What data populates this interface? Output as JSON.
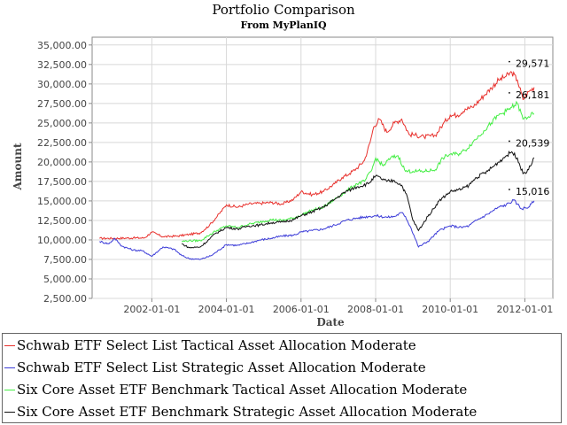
{
  "chart_data": {
    "type": "line",
    "title": "Portfolio Comparison",
    "subtitle": "From MyPlanIQ",
    "xlabel": "Date",
    "ylabel": "Amount",
    "ylim": [
      2500,
      36000
    ],
    "xlim": [
      2000.4,
      2012.75
    ],
    "y_ticks": [
      "2,500.00",
      "5,000.00",
      "7,500.00",
      "10,000.00",
      "12,500.00",
      "15,000.00",
      "17,500.00",
      "20,000.00",
      "22,500.00",
      "25,000.00",
      "27,500.00",
      "30,000.00",
      "32,500.00",
      "35,000.00"
    ],
    "y_tick_values": [
      2500,
      5000,
      7500,
      10000,
      12500,
      15000,
      17500,
      20000,
      22500,
      25000,
      27500,
      30000,
      32500,
      35000
    ],
    "x_ticks": [
      "2002-01-01",
      "2004-01-01",
      "2006-01-01",
      "2008-01-01",
      "2010-01-01",
      "2012-01-01"
    ],
    "x_tick_values": [
      2002,
      2004,
      2006,
      2008,
      2010,
      2012
    ],
    "grid": true,
    "legend_position": "bottom",
    "series": [
      {
        "name": "Schwab ETF Select List Tactical Asset Allocation Moderate",
        "color": "#e8302c",
        "end_label": "29,571",
        "x": [
          2000.6,
          2001.0,
          2001.5,
          2001.8,
          2002.0,
          2002.3,
          2002.7,
          2003.0,
          2003.3,
          2003.55,
          2003.75,
          2004.0,
          2004.3,
          2004.6,
          2004.9,
          2005.2,
          2005.5,
          2005.8,
          2006.0,
          2006.3,
          2006.6,
          2006.9,
          2007.1,
          2007.3,
          2007.5,
          2007.7,
          2007.85,
          2007.95,
          2008.1,
          2008.3,
          2008.5,
          2008.7,
          2008.9,
          2009.0,
          2009.3,
          2009.6,
          2009.8,
          2010.0,
          2010.2,
          2010.4,
          2010.6,
          2010.9,
          2011.1,
          2011.3,
          2011.5,
          2011.65,
          2011.8,
          2011.95,
          2012.1,
          2012.25
        ],
        "y": [
          10200,
          10200,
          10250,
          10250,
          11000,
          10400,
          10500,
          10700,
          10900,
          11900,
          13000,
          14500,
          14200,
          14600,
          14700,
          14800,
          14600,
          15200,
          16200,
          15800,
          16200,
          17200,
          18000,
          18500,
          19200,
          20200,
          22500,
          24500,
          25500,
          23800,
          25000,
          25500,
          23500,
          23500,
          23200,
          23400,
          24800,
          26000,
          26000,
          26800,
          27000,
          28500,
          29500,
          30500,
          31000,
          31500,
          30500,
          28000,
          29000,
          29571
        ]
      },
      {
        "name": "Schwab ETF Select List Strategic Asset Allocation Moderate",
        "color": "#3c3cd8",
        "end_label": "15,016",
        "x": [
          2000.6,
          2000.85,
          2001.0,
          2001.2,
          2001.5,
          2001.75,
          2002.0,
          2002.3,
          2002.6,
          2002.8,
          2003.0,
          2003.3,
          2003.6,
          2004.0,
          2004.3,
          2004.6,
          2004.9,
          2005.2,
          2005.5,
          2005.8,
          2006.0,
          2006.3,
          2006.6,
          2006.9,
          2007.2,
          2007.5,
          2007.8,
          2008.0,
          2008.3,
          2008.5,
          2008.7,
          2008.8,
          2008.95,
          2009.15,
          2009.4,
          2009.7,
          2010.0,
          2010.3,
          2010.5,
          2010.7,
          2011.0,
          2011.3,
          2011.5,
          2011.7,
          2011.8,
          2011.9,
          2012.1,
          2012.25
        ],
        "y": [
          9800,
          9500,
          10200,
          9200,
          8700,
          8600,
          7900,
          9100,
          8800,
          8000,
          7600,
          7500,
          8000,
          9400,
          9300,
          9600,
          10000,
          10200,
          10500,
          10600,
          11000,
          11200,
          11400,
          11900,
          12500,
          12800,
          13000,
          13100,
          12900,
          13000,
          13500,
          13000,
          11500,
          9100,
          9800,
          11200,
          11800,
          11600,
          11800,
          12500,
          13300,
          14200,
          14500,
          15100,
          14600,
          14000,
          14200,
          15016
        ]
      },
      {
        "name": "Six Core Asset ETF Benchmark Tactical Asset Allocation Moderate",
        "color": "#44ee44",
        "end_label": "26,181",
        "x": [
          2002.8,
          2003.0,
          2003.3,
          2003.5,
          2003.7,
          2004.0,
          2004.3,
          2004.6,
          2004.9,
          2005.2,
          2005.5,
          2005.8,
          2006.0,
          2006.3,
          2006.6,
          2006.9,
          2007.2,
          2007.5,
          2007.7,
          2007.9,
          2008.0,
          2008.2,
          2008.4,
          2008.6,
          2008.8,
          2009.0,
          2009.3,
          2009.6,
          2009.8,
          2010.0,
          2010.2,
          2010.4,
          2010.6,
          2010.9,
          2011.1,
          2011.3,
          2011.5,
          2011.65,
          2011.8,
          2011.95,
          2012.1,
          2012.25
        ],
        "y": [
          9800,
          9900,
          9900,
          10500,
          11100,
          11800,
          11600,
          12000,
          12300,
          12600,
          12500,
          12800,
          13200,
          13800,
          14200,
          15200,
          16200,
          17200,
          17500,
          19000,
          20500,
          19500,
          20500,
          20800,
          18800,
          18800,
          18800,
          19000,
          20500,
          21000,
          21000,
          21500,
          22500,
          24000,
          25000,
          26000,
          26500,
          27000,
          27500,
          25500,
          25800,
          26181
        ]
      },
      {
        "name": "Six Core Asset ETF Benchmark Strategic Asset Allocation Moderate",
        "color": "#111111",
        "end_label": "20,539",
        "x": [
          2002.8,
          2003.0,
          2003.3,
          2003.5,
          2003.7,
          2004.0,
          2004.3,
          2004.6,
          2004.9,
          2005.2,
          2005.5,
          2005.8,
          2006.0,
          2006.3,
          2006.6,
          2006.9,
          2007.2,
          2007.5,
          2007.8,
          2008.0,
          2008.3,
          2008.5,
          2008.7,
          2008.85,
          2009.0,
          2009.15,
          2009.4,
          2009.7,
          2010.0,
          2010.3,
          2010.5,
          2010.7,
          2011.0,
          2011.3,
          2011.5,
          2011.65,
          2011.8,
          2011.95,
          2012.1,
          2012.25
        ],
        "y": [
          9500,
          9000,
          9100,
          9900,
          10800,
          11600,
          11400,
          11800,
          11900,
          12200,
          12300,
          12600,
          13100,
          13600,
          14200,
          15200,
          16200,
          16800,
          17200,
          18200,
          17500,
          17600,
          17000,
          15500,
          12500,
          11200,
          13000,
          15000,
          16200,
          16500,
          17000,
          18000,
          18800,
          20000,
          20800,
          21300,
          20500,
          18500,
          19000,
          20539
        ]
      }
    ]
  }
}
